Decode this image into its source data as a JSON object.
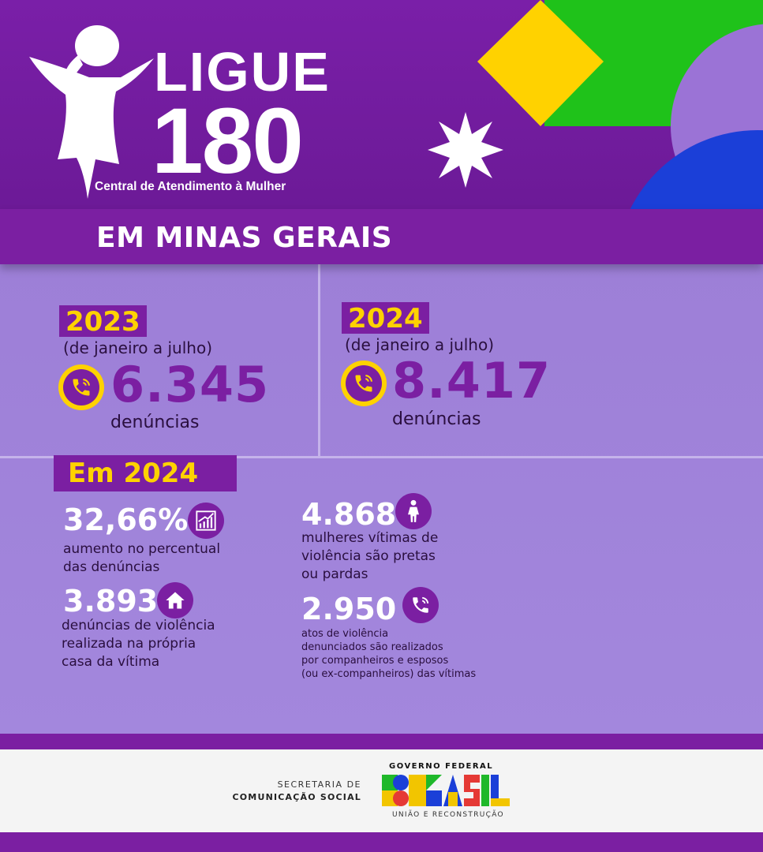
{
  "header": {
    "logo_line1": "LIGUE",
    "logo_line2": "180",
    "logo_subtitle": "Central de Atendimento à Mulher",
    "colors": {
      "purple": "#7b1fa2",
      "yellow": "#ffd200",
      "green": "#1fc21a",
      "blue": "#1b3fd8"
    }
  },
  "title": "EM MINAS GERAIS",
  "compare": [
    {
      "year": "2023",
      "period": "(de janeiro a julho)",
      "value": "6.345",
      "unit": "denúncias",
      "icon": "phone-icon"
    },
    {
      "year": "2024",
      "period": "(de janeiro a julho)",
      "value": "8.417",
      "unit": "denúncias",
      "icon": "phone-icon"
    }
  ],
  "highlight": {
    "label": "Em 2024",
    "stats": [
      {
        "value": "32,66%",
        "text_lines": [
          "aumento no percentual",
          "das denúncias"
        ],
        "icon": "growth-chart-icon"
      },
      {
        "value": "3.893",
        "text_lines": [
          "denúncias de violência",
          "realizada na própria",
          "casa da vítima"
        ],
        "icon": "house-icon"
      },
      {
        "value": "4.868",
        "text_lines": [
          "mulheres vítimas de",
          "violência são pretas",
          "ou pardas"
        ],
        "icon": "woman-icon"
      },
      {
        "value": "2.950",
        "text_lines": [
          "atos de violência",
          "denunciados são realizados",
          "por companheiros e esposos",
          "(ou ex-companheiros) das vítimas"
        ],
        "icon": "phone-icon"
      }
    ]
  },
  "footer": {
    "secom_line1": "SECRETARIA DE",
    "secom_line2": "COMUNICAÇÃO SOCIAL",
    "gov_label": "GOVERNO FEDERAL",
    "brasil_logo": "BRASIL",
    "slogan": "UNIÃO E RECONSTRUÇÃO"
  }
}
